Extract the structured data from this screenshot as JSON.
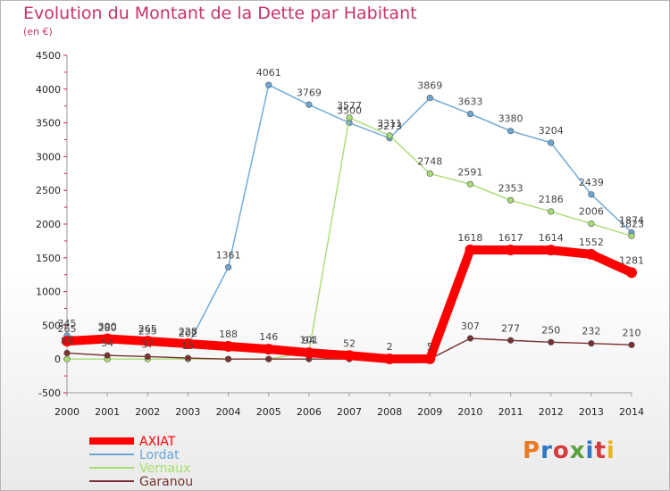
{
  "title": "Evolution du Montant de la Dette par Habitant",
  "subtitle": "(en €)",
  "logo": {
    "text": "Proxiti",
    "colors": [
      "#e87b22",
      "#2f78c4",
      "#d43c3c",
      "#5aa23a",
      "#2f78c4",
      "#d43c3c",
      "#e8b522"
    ]
  },
  "chart_data": {
    "type": "line",
    "x": [
      2000,
      2001,
      2002,
      2003,
      2004,
      2005,
      2006,
      2007,
      2008,
      2009,
      2010,
      2011,
      2012,
      2013,
      2014
    ],
    "ylim": [
      -500,
      4500
    ],
    "yticks": [
      -500,
      0,
      500,
      1000,
      1500,
      2000,
      2500,
      3000,
      3500,
      4000,
      4500
    ],
    "grid": false,
    "legend_position": "bottom-left",
    "series": [
      {
        "name": "AXIAT",
        "color": "#ff0000",
        "values": [
          265,
          300,
          265,
          228,
          188,
          146,
          94,
          52,
          2,
          5,
          1618,
          1617,
          1614,
          1552,
          1281
        ],
        "labels": [
          "265",
          "300",
          "265",
          "228",
          "188",
          "146",
          "94",
          "52",
          "2",
          "5",
          "1618",
          "1617",
          "1614",
          "1552",
          "1281"
        ]
      },
      {
        "name": "Lordat",
        "color": "#6aa6d6",
        "values": [
          345,
          280,
          235,
          202,
          1361,
          4061,
          3769,
          3500,
          3273,
          3869,
          3633,
          3380,
          3204,
          2439,
          1874
        ],
        "labels": [
          "345",
          "280",
          "235",
          "202",
          "1361",
          "4061",
          "3769",
          "3500",
          "3273",
          "3869",
          "3633",
          "3380",
          "3204",
          "2439",
          "1874"
        ]
      },
      {
        "name": "Vernaux",
        "color": "#a6dd72",
        "values": [
          0,
          0,
          0,
          0,
          0,
          0,
          101,
          3577,
          3311,
          2748,
          2591,
          2353,
          2186,
          2006,
          1823
        ],
        "labels": [
          "",
          "",
          "",
          "",
          "",
          "",
          "101",
          "3577",
          "3311",
          "2748",
          "2591",
          "2353",
          "2186",
          "2006",
          "1823"
        ]
      },
      {
        "name": "Garanou",
        "color": "#7a3030",
        "values": [
          89,
          54,
          37,
          15,
          0,
          0,
          0,
          0,
          0,
          0,
          307,
          277,
          250,
          232,
          210
        ],
        "labels": [
          "89",
          "54",
          "37",
          "15",
          "",
          "",
          "",
          "",
          "",
          "",
          "307",
          "277",
          "250",
          "232",
          "210"
        ]
      }
    ]
  }
}
